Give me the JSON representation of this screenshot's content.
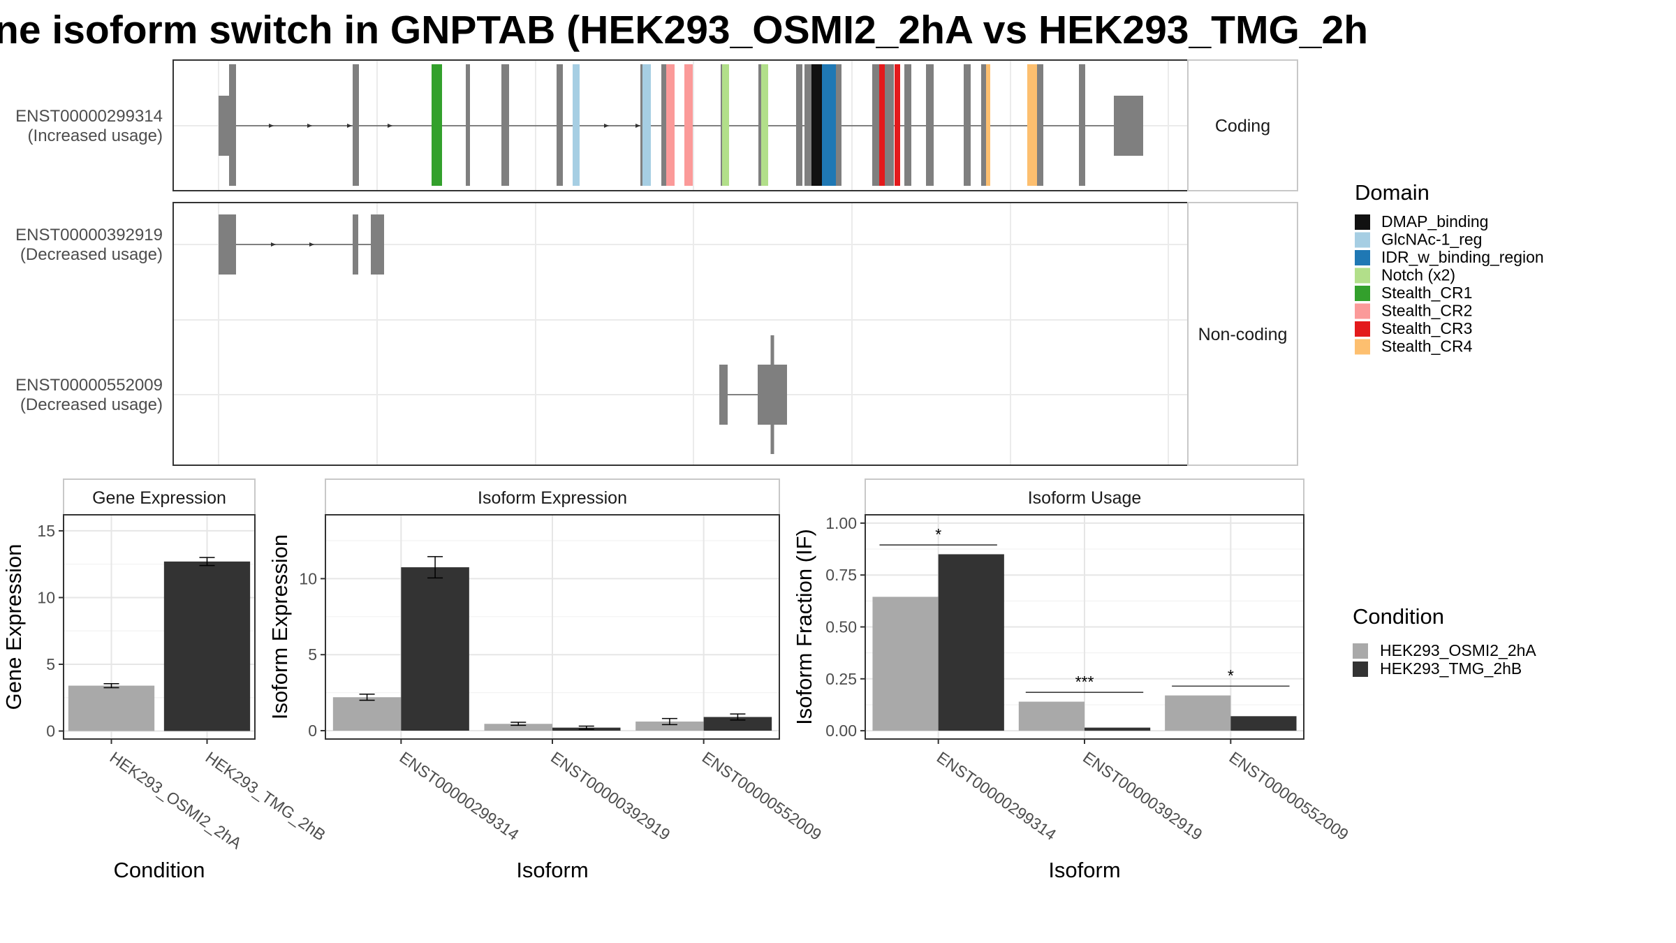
{
  "title": "ne isoform switch in GNPTAB (HEK293_OSMI2_2hA vs HEK293_TMG_2h",
  "colors": {
    "intron": "#7f7f7f",
    "condition_a": "#a9a9a9",
    "condition_b": "#333333"
  },
  "structure": {
    "facets": [
      "Coding",
      "Non-coding"
    ],
    "transcripts": [
      {
        "id": "ENST00000299314",
        "usage": "(Increased usage)",
        "facet": "Coding"
      },
      {
        "id": "ENST00000392919",
        "usage": "(Decreased usage)",
        "facet": "Non-coding"
      },
      {
        "id": "ENST00000552009",
        "usage": "(Decreased usage)",
        "facet": "Non-coding"
      }
    ],
    "domain_legend_title": "Domain",
    "domains": [
      {
        "name": "DMAP_binding",
        "color": "#111111"
      },
      {
        "name": "GlcNAc-1_reg",
        "color": "#a6cee3"
      },
      {
        "name": "IDR_w_binding_region",
        "color": "#1f78b4"
      },
      {
        "name": "Notch (x2)",
        "color": "#b2df8a"
      },
      {
        "name": "Stealth_CR1",
        "color": "#33a02c"
      },
      {
        "name": "Stealth_CR2",
        "color": "#fb9a99"
      },
      {
        "name": "Stealth_CR3",
        "color": "#e31a1c"
      },
      {
        "name": "Stealth_CR4",
        "color": "#fdbf6f"
      }
    ]
  },
  "condition_legend": {
    "title": "Condition",
    "items": [
      "HEK293_OSMI2_2hA",
      "HEK293_TMG_2hB"
    ]
  },
  "chart_data": [
    {
      "type": "bar",
      "strip": "Gene Expression",
      "xlabel": "Condition",
      "ylabel": "Gene Expression",
      "categories": [
        "HEK293_OSMI2_2hA",
        "HEK293_TMG_2hB"
      ],
      "values": [
        3.4,
        12.7
      ],
      "errors": [
        0.15,
        0.3
      ],
      "ylim": [
        -0.6,
        16.2
      ],
      "yticks": [
        "0",
        "5",
        "10",
        "15"
      ]
    },
    {
      "type": "bar",
      "strip": "Isoform Expression",
      "xlabel": "Isoform",
      "ylabel": "Isoform Expression",
      "categories": [
        "ENST00000299314",
        "ENST00000392919",
        "ENST00000552009"
      ],
      "series": [
        {
          "name": "HEK293_OSMI2_2hA",
          "values": [
            2.2,
            0.45,
            0.6
          ],
          "errors": [
            0.2,
            0.1,
            0.2
          ]
        },
        {
          "name": "HEK293_TMG_2hB",
          "values": [
            10.75,
            0.2,
            0.9
          ],
          "errors": [
            0.7,
            0.1,
            0.2
          ]
        }
      ],
      "ylim": [
        -0.55,
        14.2
      ],
      "yticks": [
        "0",
        "5",
        "10"
      ]
    },
    {
      "type": "bar",
      "strip": "Isoform Usage",
      "xlabel": "Isoform",
      "ylabel": "Isoform Fraction (IF)",
      "categories": [
        "ENST00000299314",
        "ENST00000392919",
        "ENST00000552009"
      ],
      "series": [
        {
          "name": "HEK293_OSMI2_2hA",
          "values": [
            0.645,
            0.14,
            0.17
          ]
        },
        {
          "name": "HEK293_TMG_2hB",
          "values": [
            0.85,
            0.015,
            0.07
          ]
        }
      ],
      "significance": [
        "*",
        "***",
        "*"
      ],
      "ylim": [
        -0.04,
        1.04
      ],
      "yticks": [
        "0.00",
        "0.25",
        "0.50",
        "0.75",
        "1.00"
      ]
    }
  ]
}
